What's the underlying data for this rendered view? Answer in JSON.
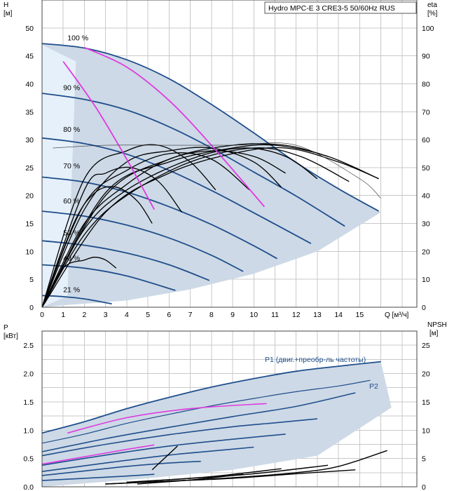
{
  "chart_data": [
    {
      "type": "line",
      "title": "Hydro MPC-E 3 CRE3-5 50/60Hz RUS",
      "y_left_label": "H",
      "y_left_unit": "[м]",
      "y_right_label": "eta",
      "y_right_unit": "[%]",
      "x_label": "Q [м³/ч]",
      "x_ticks": [
        "0",
        "1",
        "2",
        "3",
        "4",
        "5",
        "6",
        "7",
        "8",
        "9",
        "10",
        "11",
        "12",
        "13",
        "14",
        "15"
      ],
      "y_left_ticks": [
        "0",
        "5",
        "10",
        "15",
        "20",
        "25",
        "30",
        "35",
        "40",
        "45",
        "50"
      ],
      "y_right_ticks": [
        "0",
        "10",
        "20",
        "30",
        "40",
        "50",
        "60",
        "70",
        "80",
        "90",
        "100"
      ],
      "xlim": [
        0,
        17.7
      ],
      "ylim": [
        0,
        55
      ],
      "y_right_lim": [
        0,
        110
      ],
      "grid": true,
      "speed_labels": [
        {
          "text": "100 %",
          "q": 1.2,
          "h": 47.4
        },
        {
          "text": "90 %",
          "q": 1.0,
          "h": 38.5
        },
        {
          "text": "80 %",
          "q": 1.0,
          "h": 31.0
        },
        {
          "text": "70 %",
          "q": 1.0,
          "h": 24.5
        },
        {
          "text": "60 %",
          "q": 1.0,
          "h": 18.2
        },
        {
          "text": "50 %",
          "q": 1.0,
          "h": 12.5
        },
        {
          "text": "40 %",
          "q": 1.0,
          "h": 8.0
        },
        {
          "text": "21 %",
          "q": 1.0,
          "h": 2.3
        }
      ],
      "series": [
        {
          "role": "h_curve",
          "speed": 1.0,
          "q": [
            0,
            2,
            4,
            6,
            8,
            10,
            12,
            14,
            15.9
          ],
          "h": [
            47.2,
            46.4,
            44.3,
            40.9,
            36.3,
            31.2,
            25.9,
            21.2,
            17.2
          ]
        },
        {
          "role": "h_curve",
          "speed": 0.9,
          "q": [
            0,
            2,
            4,
            6,
            8,
            10,
            12,
            14.3
          ],
          "h": [
            38.3,
            37.2,
            35.3,
            32.3,
            28.5,
            24.2,
            19.9,
            14.5
          ]
        },
        {
          "role": "h_curve",
          "speed": 0.8,
          "q": [
            0,
            2,
            4,
            6,
            8,
            10,
            12.7
          ],
          "h": [
            30.3,
            29.3,
            27.4,
            24.5,
            20.9,
            16.9,
            11.4
          ]
        },
        {
          "role": "h_curve",
          "speed": 0.7,
          "q": [
            0,
            2,
            4,
            6,
            8,
            9.9,
            11.1
          ],
          "h": [
            23.3,
            22.4,
            20.6,
            18.0,
            14.8,
            11.2,
            8.7
          ]
        },
        {
          "role": "h_curve",
          "speed": 0.6,
          "q": [
            0,
            2,
            4,
            6,
            8,
            9.5
          ],
          "h": [
            17.2,
            16.3,
            14.7,
            12.4,
            9.3,
            6.4
          ]
        },
        {
          "role": "h_curve",
          "speed": 0.5,
          "q": [
            0,
            2,
            4,
            6,
            7.9
          ],
          "h": [
            11.9,
            11.1,
            9.7,
            7.6,
            4.8
          ]
        },
        {
          "role": "h_curve",
          "speed": 0.4,
          "q": [
            0,
            2,
            4,
            6.3
          ],
          "h": [
            7.6,
            7.0,
            5.6,
            3.0
          ]
        },
        {
          "role": "h_curve",
          "speed": 0.21,
          "q": [
            0,
            1,
            2,
            3.3
          ],
          "h": [
            2.1,
            1.9,
            1.5,
            0.6
          ]
        },
        {
          "role": "eta_curve",
          "q": [
            0,
            1,
            2,
            2.5,
            3,
            3.5
          ],
          "eta": [
            0,
            14,
            16.9,
            17.9,
            16.9,
            14
          ]
        },
        {
          "role": "eta_curve",
          "q": [
            0,
            1.5,
            2.5,
            3.5,
            4.5,
            5.2
          ],
          "eta": [
            0,
            30,
            41,
            43,
            38,
            30
          ]
        },
        {
          "role": "eta_curve",
          "q": [
            0,
            2,
            3,
            4.2,
            5.5,
            6.6
          ],
          "eta": [
            0,
            42,
            48,
            50,
            45,
            34
          ]
        },
        {
          "role": "eta_curve",
          "q": [
            0,
            2,
            4,
            5.5,
            7,
            8.2
          ],
          "eta": [
            0,
            46,
            56,
            58,
            52,
            42
          ]
        },
        {
          "role": "eta_curve",
          "q": [
            0,
            2,
            4,
            6,
            8,
            9.8
          ],
          "eta": [
            0,
            37,
            49,
            55,
            53,
            42
          ]
        },
        {
          "role": "eta_curve",
          "q": [
            0,
            2,
            4,
            6,
            8,
            10,
            11.3
          ],
          "eta": [
            0,
            35,
            52,
            56,
            57,
            52,
            43
          ]
        },
        {
          "role": "eta_curve",
          "q": [
            0,
            2,
            4,
            6,
            8,
            10,
            11.5
          ],
          "eta": [
            0,
            30,
            44,
            53,
            56,
            54,
            48
          ]
        },
        {
          "role": "eta_curve",
          "q": [
            0,
            2,
            4,
            7,
            9.5,
            11.5,
            13
          ],
          "eta": [
            0,
            28,
            42,
            53,
            57,
            54,
            46
          ]
        },
        {
          "role": "eta_curve",
          "q": [
            0,
            2,
            4,
            7,
            10,
            12.2,
            14.5
          ],
          "eta": [
            0,
            26,
            40,
            52,
            57,
            54,
            45
          ]
        },
        {
          "role": "eta_curve",
          "q": [
            0,
            3,
            6,
            9,
            11.5,
            14,
            15.9
          ],
          "eta": [
            0,
            34,
            48,
            55,
            57,
            52,
            46
          ]
        },
        {
          "role": "eta_curve",
          "q": [
            0,
            3,
            6,
            9,
            11.5,
            13.5
          ],
          "eta": [
            0,
            40,
            53,
            58,
            58,
            54
          ]
        },
        {
          "role": "eta_curve",
          "q": [
            0,
            3,
            6,
            9,
            11,
            13.5,
            15.9
          ],
          "eta": [
            0,
            41,
            52,
            57,
            58,
            54,
            46
          ]
        },
        {
          "role": "eta_pink",
          "q": [
            1.0,
            2.5,
            4,
            5.3
          ],
          "eta": [
            88,
            72,
            53,
            35
          ]
        },
        {
          "role": "eta_pink",
          "q": [
            2,
            4,
            6,
            8,
            10.5
          ],
          "eta": [
            93,
            86,
            74,
            58,
            36
          ]
        },
        {
          "role": "eta_curve_thin",
          "q": [
            0.5,
            3,
            6,
            9,
            12,
            15,
            16
          ],
          "eta": [
            57,
            58,
            58,
            58,
            58,
            46,
            39
          ]
        }
      ]
    },
    {
      "type": "line",
      "y_left_label": "P",
      "y_left_unit": "[кВт]",
      "y_right_label": "NPSH",
      "y_right_unit": "[м]",
      "y_left_ticks": [
        "0.0",
        "0.5",
        "1.0",
        "1.5",
        "2.0",
        "2.5"
      ],
      "y_right_ticks": [
        "0",
        "5",
        "10",
        "15",
        "20",
        "25"
      ],
      "xlim": [
        0,
        17.7
      ],
      "ylim": [
        0,
        2.75
      ],
      "y_right_lim": [
        0,
        27.5
      ],
      "grid": true,
      "series_labels": [
        "P1 (двиг.+преобр-ль частоты)",
        "P2"
      ],
      "series": [
        {
          "role": "p1",
          "speed": 1.0,
          "q": [
            0,
            2,
            4,
            6,
            8,
            10,
            12,
            14,
            16
          ],
          "p": [
            0.95,
            1.15,
            1.38,
            1.58,
            1.76,
            1.91,
            2.04,
            2.13,
            2.21
          ]
        },
        {
          "role": "p2",
          "speed": 1.0,
          "q": [
            0,
            2,
            4,
            6,
            8,
            10,
            12,
            14,
            15.5
          ],
          "p": [
            0.77,
            0.93,
            1.12,
            1.28,
            1.43,
            1.56,
            1.68,
            1.78,
            1.88
          ]
        },
        {
          "role": "p_curve",
          "q": [
            0,
            3,
            6,
            9,
            12,
            14.8
          ],
          "p": [
            0.62,
            0.85,
            1.05,
            1.24,
            1.42,
            1.66
          ]
        },
        {
          "role": "p_curve",
          "q": [
            0,
            3,
            6,
            9,
            11,
            13
          ],
          "p": [
            0.55,
            0.75,
            0.92,
            1.06,
            1.13,
            1.2
          ]
        },
        {
          "role": "p_curve",
          "q": [
            0,
            3,
            6,
            9,
            11.5
          ],
          "p": [
            0.38,
            0.56,
            0.72,
            0.84,
            0.93
          ]
        },
        {
          "role": "p_curve",
          "q": [
            0,
            3,
            6,
            8,
            10
          ],
          "p": [
            0.27,
            0.42,
            0.56,
            0.63,
            0.7
          ]
        },
        {
          "role": "p_curve",
          "q": [
            0,
            2,
            4,
            6,
            7.5
          ],
          "p": [
            0.2,
            0.28,
            0.36,
            0.42,
            0.45
          ]
        },
        {
          "role": "p_curve",
          "q": [
            0,
            2,
            4,
            5.3
          ],
          "p": [
            0.11,
            0.15,
            0.19,
            0.22
          ]
        },
        {
          "role": "p_pink",
          "q": [
            1.2,
            4,
            7,
            10.6
          ],
          "p": [
            0.95,
            1.22,
            1.38,
            1.47
          ]
        },
        {
          "role": "p_pink",
          "q": [
            0,
            2,
            4,
            5.3
          ],
          "p": [
            0.4,
            0.53,
            0.66,
            0.74
          ]
        },
        {
          "role": "npsh",
          "q": [
            3,
            6,
            9,
            12,
            14,
            16.3
          ],
          "npsh": [
            0.5,
            1.0,
            1.6,
            2.5,
            3.6,
            6.4
          ]
        },
        {
          "role": "npsh",
          "q": [
            3,
            6,
            9,
            12,
            14.8
          ],
          "npsh": [
            0.5,
            1.0,
            1.5,
            2.3,
            3.0
          ]
        },
        {
          "role": "npsh",
          "q": [
            4,
            7,
            10,
            13.5
          ],
          "npsh": [
            0.8,
            1.5,
            2.3,
            3.8
          ]
        },
        {
          "role": "npsh",
          "q": [
            5,
            8,
            11.3
          ],
          "npsh": [
            1.0,
            1.8,
            3.2
          ]
        },
        {
          "role": "npsh",
          "q": [
            4.5,
            7,
            9.5
          ],
          "npsh": [
            0.5,
            1.2,
            2.2
          ]
        },
        {
          "role": "npsh",
          "q": [
            5.2,
            6.4
          ],
          "npsh": [
            3.0,
            7.2
          ]
        }
      ]
    }
  ]
}
